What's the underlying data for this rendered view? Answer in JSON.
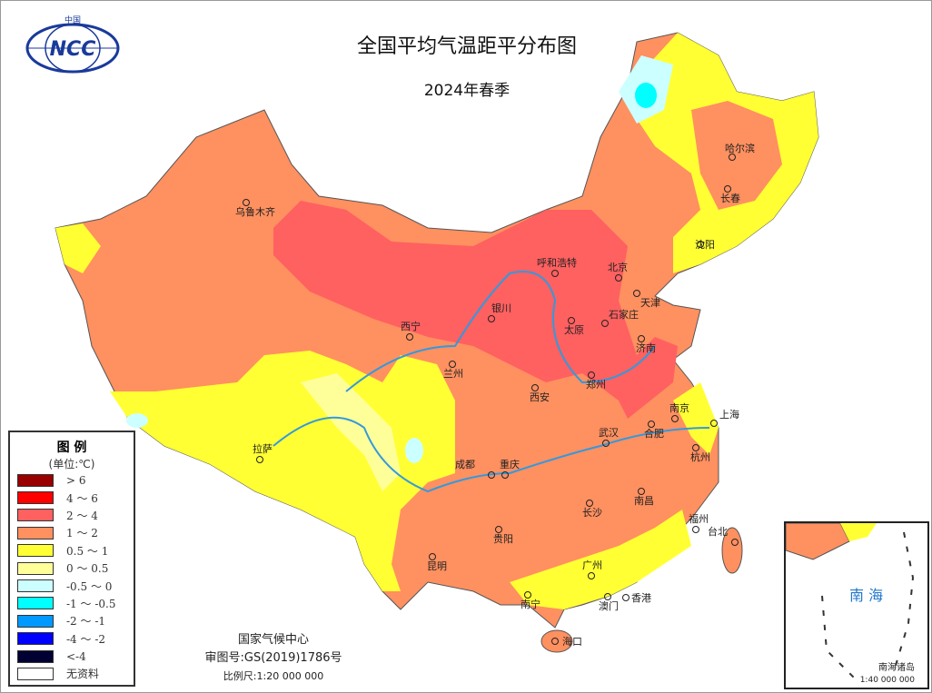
{
  "header": {
    "title": "全国平均气温距平分布图",
    "subtitle": "2024年春季",
    "logo_text": "NCC",
    "logo_top": "中国"
  },
  "legend": {
    "title": "图 例",
    "unit": "(单位:℃)",
    "items": [
      {
        "label": "> 6",
        "color": "#990000"
      },
      {
        "label": "4 ～ 6",
        "color": "#ff0000"
      },
      {
        "label": "2 ～ 4",
        "color": "#ff6060"
      },
      {
        "label": "1 ～ 2",
        "color": "#ff9060"
      },
      {
        "label": "0.5 ～ 1",
        "color": "#ffff33"
      },
      {
        "label": "0 ～ 0.5",
        "color": "#ffff99"
      },
      {
        "label": "-0.5 ～ 0",
        "color": "#ccffff"
      },
      {
        "label": "-1 ～ -0.5",
        "color": "#00ffff"
      },
      {
        "label": "-2 ～ -1",
        "color": "#0099ff"
      },
      {
        "label": "-4 ～ -2",
        "color": "#0000ff"
      },
      {
        "label": "<-4",
        "color": "#000033"
      },
      {
        "label": "无资料",
        "color": "#ffffff"
      }
    ]
  },
  "credit": {
    "org": "国家气候中心",
    "approval": "审图号:GS(2019)1786号",
    "scale": "比例尺:1:20 000 000"
  },
  "inset": {
    "sea": "南 海",
    "islands": "南海诸岛",
    "scale": "1:40 000 000"
  },
  "cities": [
    "乌鲁木齐",
    "拉萨",
    "西宁",
    "兰州",
    "银川",
    "呼和浩特",
    "北京",
    "天津",
    "石家庄",
    "太原",
    "济南",
    "郑州",
    "西安",
    "成都",
    "重庆",
    "贵阳",
    "昆明",
    "南宁",
    "海口",
    "广州",
    "澳门",
    "香港",
    "长沙",
    "武汉",
    "合肥",
    "南京",
    "上海",
    "杭州",
    "南昌",
    "福州",
    "台北",
    "沈阳",
    "长春",
    "哈尔滨"
  ]
}
